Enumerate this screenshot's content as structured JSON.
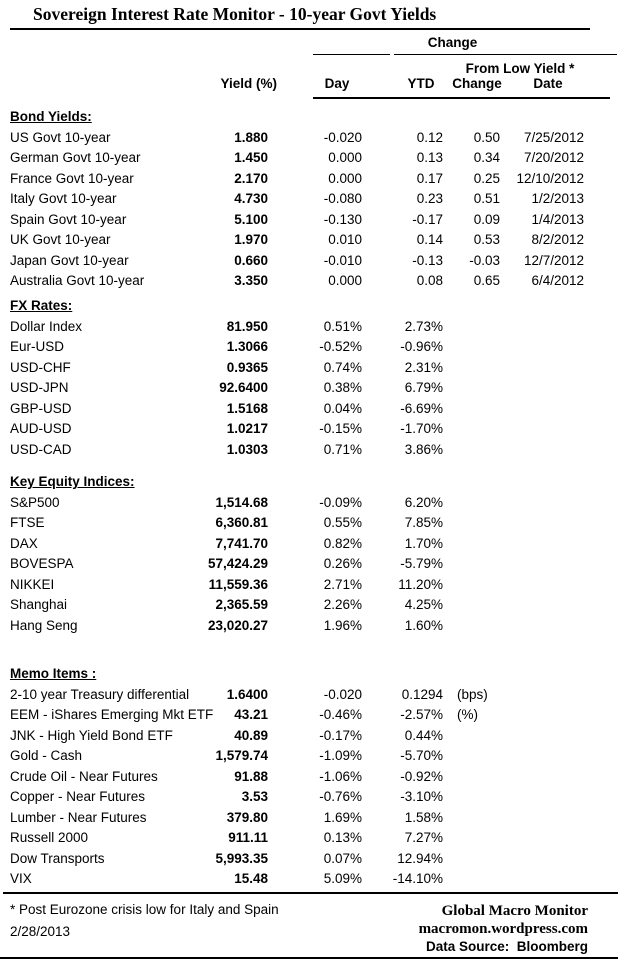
{
  "title": "Sovereign Interest Rate Monitor - 10-year Govt Yields",
  "colors": {
    "text": "#000000",
    "background": "#ffffff",
    "rule": "#000000"
  },
  "header": {
    "change_group": "Change",
    "from_low_group": "From Low Yield *",
    "col_yield": "Yield (%)",
    "col_day": "Day",
    "col_ytd": "YTD",
    "col_change": "Change",
    "col_date": "Date"
  },
  "sections": [
    {
      "name": "Bond Yields:",
      "rows": [
        {
          "label": "US Govt 10-year",
          "yield": "1.880",
          "day": "-0.020",
          "ytd": "0.12",
          "change": "0.50",
          "date": "7/25/2012"
        },
        {
          "label": "German Govt 10-year",
          "yield": "1.450",
          "day": "0.000",
          "ytd": "0.13",
          "change": "0.34",
          "date": "7/20/2012"
        },
        {
          "label": "France Govt 10-year",
          "yield": "2.170",
          "day": "0.000",
          "ytd": "0.17",
          "change": "0.25",
          "date": "12/10/2012"
        },
        {
          "label": "Italy Govt 10-year",
          "yield": "4.730",
          "day": "-0.080",
          "ytd": "0.23",
          "change": "0.51",
          "date": "1/2/2013"
        },
        {
          "label": "Spain Govt 10-year",
          "yield": "5.100",
          "day": "-0.130",
          "ytd": "-0.17",
          "change": "0.09",
          "date": "1/4/2013"
        },
        {
          "label": "UK Govt 10-year",
          "yield": "1.970",
          "day": "0.010",
          "ytd": "0.14",
          "change": "0.53",
          "date": "8/2/2012"
        },
        {
          "label": "Japan Govt 10-year",
          "yield": "0.660",
          "day": "-0.010",
          "ytd": "-0.13",
          "change": "-0.03",
          "date": "12/7/2012"
        },
        {
          "label": "Australia Govt 10-year",
          "yield": "3.350",
          "day": "0.000",
          "ytd": "0.08",
          "change": "0.65",
          "date": "6/4/2012"
        }
      ]
    },
    {
      "name": "FX Rates:",
      "rows": [
        {
          "label": "Dollar Index",
          "yield": "81.950",
          "day": "0.51%",
          "ytd": "2.73%"
        },
        {
          "label": "Eur-USD",
          "yield": "1.3066",
          "day": "-0.52%",
          "ytd": "-0.96%"
        },
        {
          "label": "USD-CHF",
          "yield": "0.9365",
          "day": "0.74%",
          "ytd": "2.31%"
        },
        {
          "label": "USD-JPN",
          "yield": "92.6400",
          "day": "0.38%",
          "ytd": "6.79%"
        },
        {
          "label": "GBP-USD",
          "yield": "1.5168",
          "day": "0.04%",
          "ytd": "-6.69%"
        },
        {
          "label": "AUD-USD",
          "yield": "1.0217",
          "day": "-0.15%",
          "ytd": "-1.70%"
        },
        {
          "label": "USD-CAD",
          "yield": "1.0303",
          "day": "0.71%",
          "ytd": "3.86%"
        }
      ]
    },
    {
      "name": "Key Equity Indices:",
      "rows": [
        {
          "label": "S&P500",
          "yield": "1,514.68",
          "day": "-0.09%",
          "ytd": "6.20%"
        },
        {
          "label": "FTSE",
          "yield": "6,360.81",
          "day": "0.55%",
          "ytd": "7.85%"
        },
        {
          "label": "DAX",
          "yield": "7,741.70",
          "day": "0.82%",
          "ytd": "1.70%"
        },
        {
          "label": "BOVESPA",
          "yield": "57,424.29",
          "day": "0.26%",
          "ytd": "-5.79%"
        },
        {
          "label": "NIKKEI",
          "yield": "11,559.36",
          "day": "2.71%",
          "ytd": "11.20%"
        },
        {
          "label": "Shanghai",
          "yield": "2,365.59",
          "day": "2.26%",
          "ytd": "4.25%"
        },
        {
          "label": "Hang Seng",
          "yield": "23,020.27",
          "day": "1.96%",
          "ytd": "1.60%"
        }
      ]
    },
    {
      "name": "Memo Items :",
      "rows": [
        {
          "label": "2-10 year Treasury differential",
          "yield": "1.6400",
          "day": "-0.020",
          "ytd": "0.1294",
          "note": "(bps)"
        },
        {
          "label": "EEM - iShares Emerging Mkt ETF",
          "yield": "43.21",
          "day": "-0.46%",
          "ytd": "-2.57%",
          "note": "(%)"
        },
        {
          "label": "JNK - High Yield Bond ETF",
          "yield": "40.89",
          "day": "-0.17%",
          "ytd": "0.44%"
        },
        {
          "label": "Gold - Cash",
          "yield": "1,579.74",
          "day": "-1.09%",
          "ytd": "-5.70%"
        },
        {
          "label": "Crude Oil - Near Futures",
          "yield": "91.88",
          "day": "-1.06%",
          "ytd": "-0.92%"
        },
        {
          "label": "Copper - Near Futures",
          "yield": "3.53",
          "day": "-0.76%",
          "ytd": "-3.10%"
        },
        {
          "label": "Lumber - Near Futures",
          "yield": "379.80",
          "day": "1.69%",
          "ytd": "1.58%"
        },
        {
          "label": "Russell 2000",
          "yield": "911.11",
          "day": "0.13%",
          "ytd": "7.27%"
        },
        {
          "label": "Dow Transports",
          "yield": "5,993.35",
          "day": "0.07%",
          "ytd": "12.94%"
        },
        {
          "label": "VIX",
          "yield": "15.48",
          "day": "5.09%",
          "ytd": "-14.10%"
        }
      ]
    }
  ],
  "footer": {
    "footnote": "* Post Eurozone crisis low for Italy and Spain",
    "date": "2/28/2013",
    "brand": "Global Macro Monitor",
    "url": "macromon.wordpress.com",
    "source": "Data Source:  Bloomberg"
  }
}
